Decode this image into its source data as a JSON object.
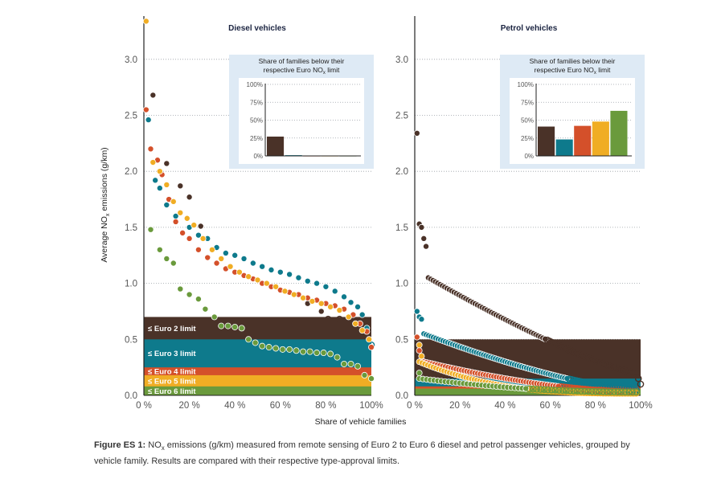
{
  "figure": {
    "caption_label": "Figure ES 1:",
    "caption_text_1": " NO",
    "caption_sub": "x",
    "caption_text_2": " emissions (g/km) measured from remote sensing of Euro 2 to Euro 6 diesel and petrol passenger vehicles, grouped by vehicle family. Results are compared with their respective type-approval limits.",
    "shared_xlabel": "Share of vehicle families",
    "shared_ylabel": "Average NOx emissions (g/km)"
  },
  "colors": {
    "euro2": "#4a3228",
    "euro3": "#0e7a8c",
    "euro4": "#d4502a",
    "euro5": "#f0ad24",
    "euro6": "#6a9a3c",
    "inset_bg": "#deeaf5",
    "grid": "#9aa0a6"
  },
  "chart_data": [
    {
      "type": "scatter",
      "title": "Diesel vehicles",
      "xlabel": "Share of vehicle families",
      "ylabel": "Average NOx emissions (g/km)",
      "xlim": [
        0,
        100
      ],
      "ylim": [
        0,
        3.4
      ],
      "xticks": [
        "0 %",
        "20 %",
        "40 %",
        "60 %",
        "80 %",
        "100%"
      ],
      "yticks": [
        "0.0",
        "0.5",
        "1.0",
        "1.5",
        "2.0",
        "2.5",
        "3.0"
      ],
      "grid": true,
      "limit_bands": [
        {
          "label": "≤ Euro 2 limit",
          "value": 0.7,
          "series": "euro2"
        },
        {
          "label": "≤ Euro 3 limit",
          "value": 0.5,
          "series": "euro3"
        },
        {
          "label": "≤ Euro 4 limit",
          "value": 0.25,
          "series": "euro4"
        },
        {
          "label": "≤ Euro 5 limit",
          "value": 0.18,
          "series": "euro5"
        },
        {
          "label": "≤ Euro 6 limit",
          "value": 0.08,
          "series": "euro6"
        }
      ],
      "series": [
        {
          "name": "Euro 2",
          "color_key": "euro2",
          "points": [
            [
              4,
              2.68
            ],
            [
              10,
              2.07
            ],
            [
              16,
              1.87
            ],
            [
              20,
              1.77
            ],
            [
              25,
              1.51
            ],
            [
              72,
              0.82
            ],
            [
              78,
              0.75
            ],
            [
              81,
              0.68
            ],
            [
              86,
              0.68
            ]
          ]
        },
        {
          "name": "Euro 3",
          "color_key": "euro3",
          "points": [
            [
              2,
              2.46
            ],
            [
              5,
              1.92
            ],
            [
              7,
              1.85
            ],
            [
              10,
              1.7
            ],
            [
              14,
              1.6
            ],
            [
              20,
              1.5
            ],
            [
              24,
              1.43
            ],
            [
              28,
              1.4
            ],
            [
              32,
              1.32
            ],
            [
              36,
              1.27
            ],
            [
              40,
              1.25
            ],
            [
              44,
              1.22
            ],
            [
              48,
              1.18
            ],
            [
              52,
              1.15
            ],
            [
              56,
              1.12
            ],
            [
              60,
              1.1
            ],
            [
              64,
              1.08
            ],
            [
              68,
              1.05
            ],
            [
              72,
              1.02
            ],
            [
              76,
              1.0
            ],
            [
              80,
              0.97
            ],
            [
              84,
              0.93
            ],
            [
              88,
              0.88
            ],
            [
              91,
              0.83
            ],
            [
              94,
              0.79
            ],
            [
              96,
              0.72
            ],
            [
              98,
              0.6
            ],
            [
              100,
              0.45
            ]
          ]
        },
        {
          "name": "Euro 4",
          "color_key": "euro4",
          "points": [
            [
              1,
              2.55
            ],
            [
              3,
              2.2
            ],
            [
              6,
              2.1
            ],
            [
              8,
              1.97
            ],
            [
              11,
              1.75
            ],
            [
              14,
              1.55
            ],
            [
              17,
              1.45
            ],
            [
              20,
              1.4
            ],
            [
              24,
              1.3
            ],
            [
              28,
              1.23
            ],
            [
              32,
              1.18
            ],
            [
              36,
              1.13
            ],
            [
              40,
              1.1
            ],
            [
              44,
              1.07
            ],
            [
              48,
              1.04
            ],
            [
              52,
              1.0
            ],
            [
              56,
              0.97
            ],
            [
              60,
              0.94
            ],
            [
              64,
              0.92
            ],
            [
              68,
              0.9
            ],
            [
              72,
              0.87
            ],
            [
              76,
              0.85
            ],
            [
              80,
              0.82
            ],
            [
              84,
              0.8
            ],
            [
              88,
              0.77
            ],
            [
              92,
              0.72
            ],
            [
              95,
              0.64
            ],
            [
              98,
              0.57
            ],
            [
              100,
              0.43
            ]
          ]
        },
        {
          "name": "Euro 5",
          "color_key": "euro5",
          "points": [
            [
              1,
              3.34
            ],
            [
              4,
              2.08
            ],
            [
              7,
              2.0
            ],
            [
              10,
              1.88
            ],
            [
              13,
              1.73
            ],
            [
              16,
              1.63
            ],
            [
              19,
              1.58
            ],
            [
              22,
              1.52
            ],
            [
              26,
              1.4
            ],
            [
              30,
              1.3
            ],
            [
              34,
              1.22
            ],
            [
              38,
              1.15
            ],
            [
              42,
              1.1
            ],
            [
              46,
              1.06
            ],
            [
              50,
              1.03
            ],
            [
              54,
              1.0
            ],
            [
              58,
              0.97
            ],
            [
              62,
              0.93
            ],
            [
              66,
              0.9
            ],
            [
              70,
              0.87
            ],
            [
              74,
              0.84
            ],
            [
              78,
              0.82
            ],
            [
              82,
              0.79
            ],
            [
              86,
              0.76
            ],
            [
              90,
              0.7
            ],
            [
              93,
              0.64
            ],
            [
              96,
              0.58
            ],
            [
              99,
              0.5
            ]
          ]
        },
        {
          "name": "Euro 6",
          "color_key": "euro6",
          "points": [
            [
              3,
              1.48
            ],
            [
              7,
              1.3
            ],
            [
              10,
              1.22
            ],
            [
              13,
              1.18
            ],
            [
              16,
              0.95
            ],
            [
              20,
              0.9
            ],
            [
              24,
              0.86
            ],
            [
              27,
              0.77
            ],
            [
              31,
              0.7
            ],
            [
              34,
              0.62
            ],
            [
              37,
              0.62
            ],
            [
              40,
              0.61
            ],
            [
              43,
              0.6
            ],
            [
              46,
              0.5
            ],
            [
              49,
              0.47
            ],
            [
              52,
              0.44
            ],
            [
              55,
              0.43
            ],
            [
              58,
              0.42
            ],
            [
              61,
              0.41
            ],
            [
              64,
              0.41
            ],
            [
              67,
              0.4
            ],
            [
              70,
              0.39
            ],
            [
              73,
              0.39
            ],
            [
              76,
              0.38
            ],
            [
              79,
              0.38
            ],
            [
              82,
              0.37
            ],
            [
              85,
              0.34
            ],
            [
              88,
              0.28
            ],
            [
              91,
              0.28
            ],
            [
              94,
              0.26
            ],
            [
              97,
              0.18
            ],
            [
              100,
              0.15
            ]
          ]
        }
      ],
      "inset": {
        "type": "bar",
        "title_1": "Share of families below their",
        "title_2": "respective Euro NO",
        "title_sub": "x",
        "title_3": " limit",
        "yticks": [
          "100%",
          "75%",
          "50%",
          "25%",
          "0%"
        ],
        "ylim": [
          0,
          100
        ],
        "categories": [
          "Euro 2",
          "Euro 3",
          "Euro 4",
          "Euro 5",
          "Euro 6"
        ],
        "values": [
          27,
          1,
          0,
          0,
          0
        ]
      }
    },
    {
      "type": "scatter",
      "title": "Petrol vehicles",
      "xlabel": "Share of vehicle families",
      "ylabel": "Average NOx emissions (g/km)",
      "xlim": [
        0,
        100
      ],
      "ylim": [
        0,
        3.4
      ],
      "xticks": [
        "0 %",
        "20 %",
        "40 %",
        "60 %",
        "80 %",
        "100%"
      ],
      "yticks": [
        "0.0",
        "0.5",
        "1.0",
        "1.5",
        "2.0",
        "2.5",
        "3.0"
      ],
      "grid": true,
      "limit_bands": [
        {
          "label": "",
          "value": 0.5,
          "series": "euro2"
        },
        {
          "label": "",
          "value": 0.15,
          "series": "euro3"
        },
        {
          "label": "",
          "value": 0.08,
          "series": "euro4"
        },
        {
          "label": "",
          "value": 0.06,
          "series": "euro5"
        },
        {
          "label": "",
          "value": 0.06,
          "series": "euro6"
        }
      ],
      "series": [
        {
          "name": "Euro 2",
          "color_key": "euro2",
          "curve": {
            "start": 1.05,
            "end": 0.2,
            "shape": 0.8,
            "n": 90,
            "x0": 6
          },
          "extra": [
            [
              1,
              2.34
            ],
            [
              2,
              1.53
            ],
            [
              3,
              1.5
            ],
            [
              4,
              1.4
            ],
            [
              5,
              1.33
            ],
            [
              99,
              0.15
            ],
            [
              100,
              0.1
            ]
          ]
        },
        {
          "name": "Euro 3",
          "color_key": "euro3",
          "curve": {
            "start": 0.55,
            "end": 0.05,
            "shape": 0.7,
            "n": 90,
            "x0": 4
          },
          "extra": [
            [
              1,
              0.75
            ],
            [
              2,
              0.7
            ],
            [
              3,
              0.68
            ]
          ]
        },
        {
          "name": "Euro 4",
          "color_key": "euro4",
          "curve": {
            "start": 0.3,
            "end": 0.03,
            "shape": 0.6,
            "n": 80,
            "x0": 4
          },
          "extra": [
            [
              1,
              0.52
            ],
            [
              2,
              0.4
            ]
          ]
        },
        {
          "name": "Euro 5",
          "color_key": "euro5",
          "curve": {
            "start": 0.3,
            "end": 0.02,
            "shape": 0.35,
            "n": 80,
            "x0": 2
          },
          "extra": [
            [
              2,
              0.45
            ],
            [
              3,
              0.35
            ]
          ]
        },
        {
          "name": "Euro 6",
          "color_key": "euro6",
          "curve": {
            "start": 0.15,
            "end": 0.03,
            "shape": 0.5,
            "n": 60,
            "x0": 2
          },
          "extra": [
            [
              2,
              0.2
            ]
          ]
        }
      ],
      "inset": {
        "type": "bar",
        "title_1": "Share of families below their",
        "title_2": "respective Euro NO",
        "title_sub": "x",
        "title_3": " limit",
        "yticks": [
          "100%",
          "75%",
          "50%",
          "25%",
          "0%"
        ],
        "ylim": [
          0,
          100
        ],
        "categories": [
          "Euro 2",
          "Euro 3",
          "Euro 4",
          "Euro 5",
          "Euro 6"
        ],
        "values": [
          41,
          23,
          42,
          48,
          63
        ]
      }
    }
  ]
}
